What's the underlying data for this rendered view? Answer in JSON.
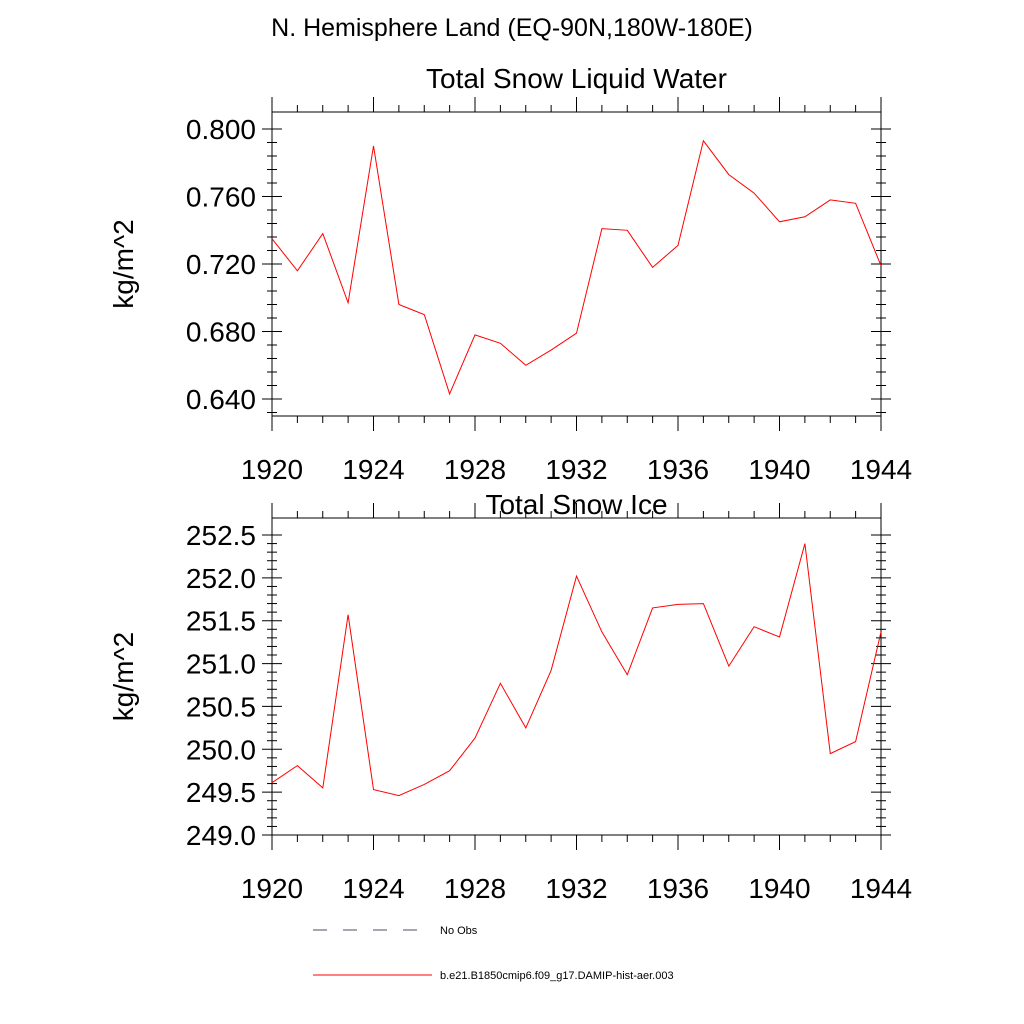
{
  "title": "N. Hemisphere Land (EQ-90N,180W-180E)",
  "colors": {
    "series": "#ff0000",
    "axis": "#000000",
    "noobs": "#4d4d66"
  },
  "legend": {
    "items": [
      {
        "label": "No Obs",
        "style": "dashed"
      },
      {
        "label": "b.e21.B1850cmip6.f09_g17.DAMIP-hist-aer.003",
        "style": "solid"
      }
    ]
  },
  "chart_data": [
    {
      "type": "line",
      "title": "Total Snow Liquid Water",
      "ylabel": "kg/m^2",
      "xlabel": "",
      "xlim": [
        1920,
        1944
      ],
      "ylim": [
        0.63,
        0.81
      ],
      "xticks": [
        1920,
        1924,
        1928,
        1932,
        1936,
        1940,
        1944
      ],
      "yticks": [
        0.64,
        0.68,
        0.72,
        0.76,
        0.8
      ],
      "ytick_labels": [
        "0.640",
        "0.680",
        "0.720",
        "0.760",
        "0.800"
      ],
      "grid": false,
      "x": [
        1920,
        1921,
        1922,
        1923,
        1924,
        1925,
        1926,
        1927,
        1928,
        1929,
        1930,
        1931,
        1932,
        1933,
        1934,
        1935,
        1936,
        1937,
        1938,
        1939,
        1940,
        1941,
        1942,
        1943,
        1944
      ],
      "series": [
        {
          "name": "b.e21.B1850cmip6.f09_g17.DAMIP-hist-aer.003",
          "values": [
            0.735,
            0.716,
            0.738,
            0.697,
            0.79,
            0.696,
            0.69,
            0.643,
            0.678,
            0.673,
            0.66,
            0.669,
            0.679,
            0.741,
            0.74,
            0.718,
            0.731,
            0.793,
            0.773,
            0.762,
            0.745,
            0.748,
            0.758,
            0.756,
            0.719
          ]
        }
      ]
    },
    {
      "type": "line",
      "title": "Total Snow Ice",
      "ylabel": "kg/m^2",
      "xlabel": "",
      "xlim": [
        1920,
        1944
      ],
      "ylim": [
        249.0,
        252.5
      ],
      "xticks": [
        1920,
        1924,
        1928,
        1932,
        1936,
        1940,
        1944
      ],
      "yticks": [
        249.0,
        249.5,
        250.0,
        250.5,
        251.0,
        251.5,
        252.0,
        252.5
      ],
      "ytick_labels": [
        "249.0",
        "249.5",
        "250.0",
        "250.5",
        "251.0",
        "251.5",
        "252.0",
        "252.5"
      ],
      "grid": false,
      "x": [
        1920,
        1921,
        1922,
        1923,
        1924,
        1925,
        1926,
        1927,
        1928,
        1929,
        1930,
        1931,
        1932,
        1933,
        1934,
        1935,
        1936,
        1937,
        1938,
        1939,
        1940,
        1941,
        1942,
        1943,
        1944
      ],
      "series": [
        {
          "name": "b.e21.B1850cmip6.f09_g17.DAMIP-hist-aer.003",
          "values": [
            249.61,
            249.81,
            249.55,
            251.57,
            249.53,
            249.46,
            249.59,
            249.75,
            250.13,
            250.77,
            250.25,
            250.92,
            252.02,
            251.37,
            250.87,
            251.65,
            251.69,
            251.7,
            250.97,
            251.43,
            251.31,
            252.4,
            249.95,
            250.09,
            251.37
          ]
        }
      ]
    }
  ]
}
